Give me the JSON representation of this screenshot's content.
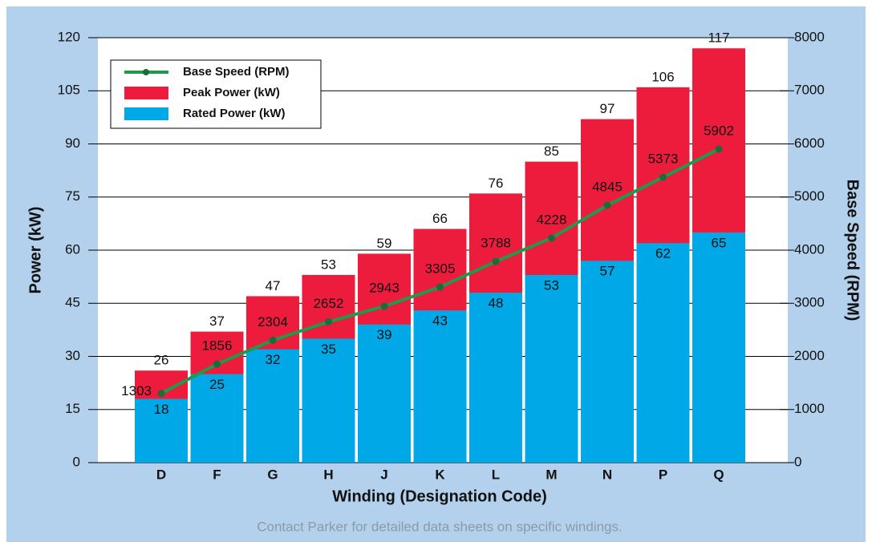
{
  "chart_data": {
    "type": "bar",
    "footer": "Contact Parker for detailed data sheets on specific windings.",
    "x_label": "Winding (Designation Code)",
    "y_label": "Power (kW)",
    "y2_label": "Base Speed (RPM)",
    "categories": [
      "D",
      "F",
      "G",
      "H",
      "J",
      "K",
      "L",
      "M",
      "N",
      "P",
      "Q"
    ],
    "series": [
      {
        "name": "Base Speed (RPM)",
        "type": "line",
        "axis": "y2",
        "color": "#1f9a4c",
        "marker_color": "#1c6b3a",
        "values": [
          1303,
          1856,
          2304,
          2652,
          2943,
          3305,
          3788,
          4228,
          4845,
          5373,
          5902
        ]
      },
      {
        "name": "Peak Power (kW)",
        "type": "bar",
        "color": "#ed1c3d",
        "values": [
          26,
          37,
          47,
          53,
          59,
          66,
          76,
          85,
          97,
          106,
          117
        ]
      },
      {
        "name": "Rated Power (kW)",
        "type": "bar",
        "color": "#00a8e8",
        "values": [
          18,
          25,
          32,
          35,
          39,
          43,
          48,
          53,
          57,
          62,
          65
        ]
      }
    ],
    "ylim": [
      0,
      120
    ],
    "yticks": [
      0,
      15,
      30,
      45,
      60,
      75,
      90,
      105,
      120
    ],
    "y2lim": [
      0,
      8000
    ],
    "y2ticks": [
      0,
      1000,
      2000,
      3000,
      4000,
      5000,
      6000,
      7000,
      8000
    ],
    "grid": true,
    "legend": "upper left"
  }
}
